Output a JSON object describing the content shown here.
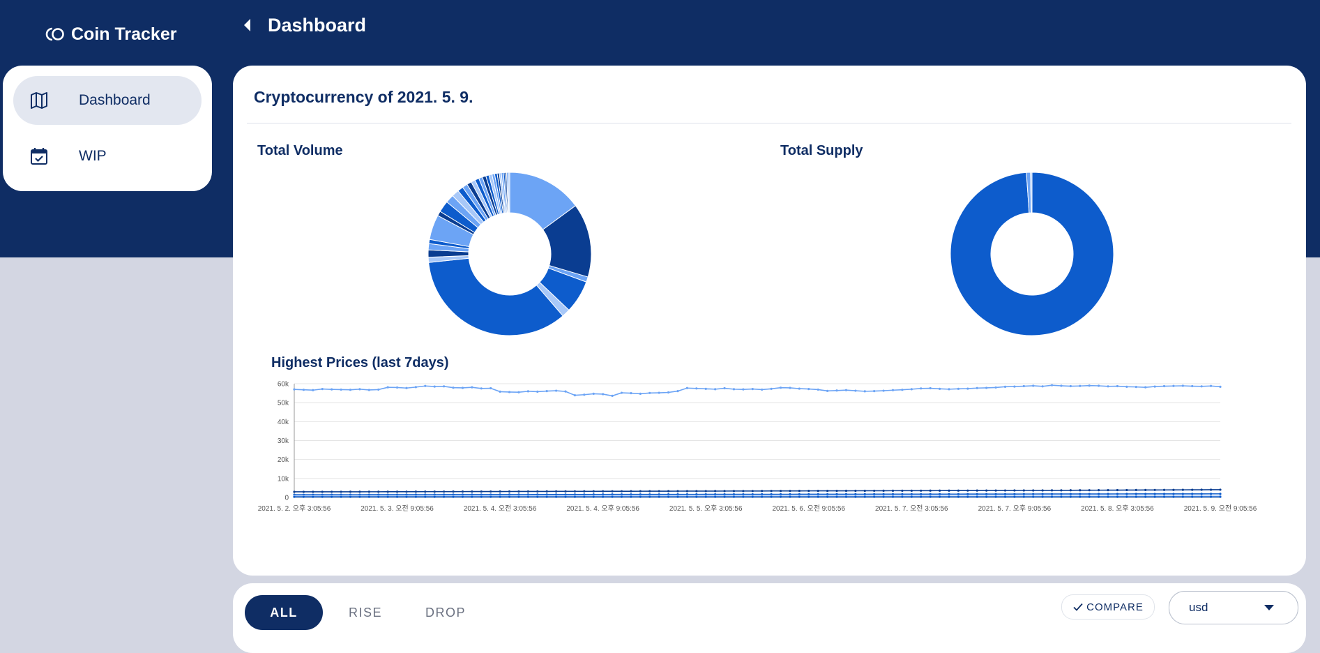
{
  "app": {
    "name": "Coin Tracker"
  },
  "header": {
    "title": "Dashboard"
  },
  "sidebar": {
    "items": [
      {
        "label": "Dashboard",
        "icon": "map-icon",
        "active": true
      },
      {
        "label": "WIP",
        "icon": "calendar-check-icon",
        "active": false
      }
    ]
  },
  "main": {
    "title": "Cryptocurrency of 2021. 5. 9.",
    "total_volume_label": "Total Volume",
    "total_supply_label": "Total Supply",
    "highest_prices_label": "Highest Prices (last 7days)"
  },
  "filters": {
    "tabs": [
      "ALL",
      "RISE",
      "DROP"
    ],
    "active": "ALL",
    "compare_label": "COMPARE",
    "currency_value": "usd"
  },
  "colors": {
    "navy": "#0f2d64",
    "blue": "#0d5ccc",
    "light_blue": "#6ca4f5",
    "dark_blue": "#0a3d91"
  },
  "chart_data": [
    {
      "type": "pie",
      "variant": "donut",
      "title": "Total Volume",
      "slices": [
        {
          "value": 14.5,
          "color": "#6ca4f5"
        },
        {
          "value": 14.2,
          "color": "#0a3d91"
        },
        {
          "value": 1.0,
          "color": "#6ca4f5"
        },
        {
          "value": 6.3,
          "color": "#0d5ccc"
        },
        {
          "value": 1.6,
          "color": "#a8c8f8"
        },
        {
          "value": 33.6,
          "color": "#0d5ccc"
        },
        {
          "value": 1.0,
          "color": "#a8c8f8"
        },
        {
          "value": 1.4,
          "color": "#0a3d91"
        },
        {
          "value": 1.2,
          "color": "#6ca4f5"
        },
        {
          "value": 0.8,
          "color": "#0d5ccc"
        },
        {
          "value": 4.8,
          "color": "#6ca4f5"
        },
        {
          "value": 0.9,
          "color": "#0a3d91"
        },
        {
          "value": 2.2,
          "color": "#0d5ccc"
        },
        {
          "value": 1.6,
          "color": "#6ca4f5"
        },
        {
          "value": 1.4,
          "color": "#a8c8f8"
        },
        {
          "value": 1.1,
          "color": "#0d5ccc"
        },
        {
          "value": 1.0,
          "color": "#6ca4f5"
        },
        {
          "value": 0.9,
          "color": "#0a3d91"
        },
        {
          "value": 0.8,
          "color": "#a8c8f8"
        },
        {
          "value": 0.8,
          "color": "#0d5ccc"
        },
        {
          "value": 0.7,
          "color": "#6ca4f5"
        },
        {
          "value": 0.7,
          "color": "#0a3d91"
        },
        {
          "value": 0.6,
          "color": "#0d5ccc"
        },
        {
          "value": 0.6,
          "color": "#a8c8f8"
        },
        {
          "value": 0.5,
          "color": "#6ca4f5"
        },
        {
          "value": 0.5,
          "color": "#0d5ccc"
        },
        {
          "value": 0.4,
          "color": "#0a3d91"
        },
        {
          "value": 0.4,
          "color": "#a8c8f8"
        },
        {
          "value": 0.4,
          "color": "#6ca4f5"
        },
        {
          "value": 0.3,
          "color": "#0d5ccc"
        },
        {
          "value": 0.3,
          "color": "#0a3d91"
        },
        {
          "value": 0.3,
          "color": "#6ca4f5"
        },
        {
          "value": 0.3,
          "color": "#a8c8f8"
        }
      ]
    },
    {
      "type": "pie",
      "variant": "donut",
      "title": "Total Supply",
      "slices": [
        {
          "value": 98.9,
          "color": "#0d5ccc"
        },
        {
          "value": 0.8,
          "color": "#6ca4f5"
        },
        {
          "value": 0.3,
          "color": "#a8c8f8"
        }
      ]
    },
    {
      "type": "line",
      "title": "Highest Prices (last 7days)",
      "ylim": [
        0,
        60000
      ],
      "yticks": [
        "0",
        "10k",
        "20k",
        "30k",
        "40k",
        "50k",
        "60k"
      ],
      "xticks": [
        "2021. 5. 2. 오후 3:05:56",
        "2021. 5. 3. 오전 9:05:56",
        "2021. 5. 4. 오전 3:05:56",
        "2021. 5. 4. 오후 9:05:56",
        "2021. 5. 5. 오후 3:05:56",
        "2021. 5. 6. 오전 9:05:56",
        "2021. 5. 7. 오전 3:05:56",
        "2021. 5. 7. 오후 9:05:56",
        "2021. 5. 8. 오후 3:05:56",
        "2021. 5. 9. 오전 9:05:56"
      ],
      "series": [
        {
          "color": "#6ca4f5",
          "values": [
            57000,
            56800,
            56600,
            57200,
            57000,
            56900,
            56800,
            57100,
            56700,
            56900,
            58100,
            58000,
            57700,
            58200,
            58800,
            58500,
            58600,
            57900,
            57800,
            58100,
            57500,
            57600,
            55800,
            55600,
            55500,
            56000,
            55800,
            56100,
            56300,
            55900,
            53900,
            54200,
            54700,
            54500,
            53600,
            55200,
            55000,
            54700,
            55100,
            55200,
            55400,
            56100,
            57700,
            57500,
            57300,
            57100,
            57600,
            57100,
            57000,
            57200,
            56900,
            57300,
            57900,
            57800,
            57400,
            57200,
            56900,
            56200,
            56400,
            56600,
            56300,
            56000,
            56100,
            56300,
            56600,
            56800,
            57100,
            57500,
            57600,
            57300,
            57100,
            57300,
            57400,
            57700,
            57800,
            58000,
            58400,
            58500,
            58700,
            58900,
            58600,
            59200,
            58900,
            58700,
            58800,
            59000,
            58900,
            58600,
            58700,
            58400,
            58300,
            58100,
            58500,
            58700,
            58800,
            58900,
            58700,
            58600,
            58800,
            58400
          ]
        },
        {
          "color": "#0a3d91",
          "values": [
            2950,
            2950,
            2960,
            2960,
            2970,
            2970,
            2980,
            2980,
            2990,
            2990,
            3000,
            3010,
            3020,
            3030,
            3040,
            3050,
            3060,
            3070,
            3080,
            3090,
            3100,
            3110,
            3120,
            3130,
            3140,
            3150,
            3160,
            3170,
            3180,
            3190,
            3200,
            3210,
            3220,
            3230,
            3240,
            3250,
            3260,
            3270,
            3280,
            3290,
            3300,
            3310,
            3320,
            3330,
            3340,
            3350,
            3360,
            3370,
            3380,
            3390,
            3400,
            3410,
            3420,
            3430,
            3440,
            3450,
            3460,
            3470,
            3480,
            3490,
            3500,
            3510,
            3520,
            3530,
            3540,
            3550,
            3560,
            3570,
            3580,
            3590,
            3600,
            3610,
            3620,
            3630,
            3640,
            3650,
            3660,
            3670,
            3680,
            3690,
            3700,
            3720,
            3740,
            3760,
            3780,
            3800,
            3820,
            3840,
            3860,
            3880,
            3900,
            3920,
            3940,
            3960,
            3980,
            4000,
            4020,
            4040,
            4060,
            4080
          ]
        },
        {
          "color": "#0d5ccc",
          "values": [
            1400,
            1400,
            1410,
            1410,
            1420,
            1420,
            1430,
            1430,
            1440,
            1440,
            1450,
            1450,
            1460,
            1460,
            1470,
            1470,
            1480,
            1480,
            1490,
            1490,
            1500,
            1500,
            1510,
            1510,
            1520,
            1520,
            1530,
            1530,
            1540,
            1540,
            1550,
            1550,
            1560,
            1560,
            1570,
            1570,
            1580,
            1580,
            1590,
            1590,
            1600,
            1600,
            1610,
            1610,
            1620,
            1620,
            1630,
            1630,
            1640,
            1640,
            1650,
            1650,
            1660,
            1660,
            1670,
            1670,
            1680,
            1680,
            1690,
            1690,
            1700,
            1700,
            1710,
            1710,
            1720,
            1720,
            1730,
            1730,
            1740,
            1740,
            1750,
            1750,
            1760,
            1760,
            1770,
            1770,
            1780,
            1780,
            1790,
            1790,
            1800,
            1800,
            1810,
            1810,
            1820,
            1820,
            1830,
            1830,
            1840,
            1840,
            1850,
            1850,
            1860,
            1860,
            1870,
            1870,
            1880,
            1880,
            1890,
            1890
          ]
        },
        {
          "color": "#a8c8f8",
          "values": [
            700,
            700,
            700,
            700,
            700,
            700,
            700,
            700,
            700,
            700,
            700,
            700,
            700,
            700,
            700,
            700,
            700,
            700,
            700,
            700,
            700,
            700,
            700,
            700,
            700,
            700,
            700,
            700,
            700,
            700,
            700,
            700,
            700,
            700,
            700,
            700,
            700,
            700,
            700,
            700,
            700,
            700,
            700,
            700,
            700,
            700,
            700,
            700,
            700,
            700,
            700,
            700,
            700,
            700,
            700,
            700,
            700,
            700,
            700,
            700,
            700,
            700,
            700,
            700,
            700,
            700,
            700,
            700,
            700,
            700,
            700,
            700,
            700,
            700,
            700,
            700,
            700,
            700,
            700,
            700,
            700,
            700,
            700,
            700,
            700,
            700,
            700,
            700,
            700,
            700,
            700,
            700,
            700,
            700,
            700,
            700,
            700,
            700,
            700,
            700
          ]
        },
        {
          "color": "#0d5ccc",
          "values": [
            300,
            300,
            300,
            300,
            300,
            300,
            300,
            300,
            300,
            300,
            300,
            300,
            300,
            300,
            300,
            300,
            300,
            300,
            300,
            300,
            300,
            300,
            300,
            300,
            300,
            300,
            300,
            300,
            300,
            300,
            300,
            300,
            300,
            300,
            300,
            300,
            300,
            300,
            300,
            300,
            300,
            300,
            300,
            300,
            300,
            300,
            300,
            300,
            300,
            300,
            300,
            300,
            300,
            300,
            300,
            300,
            300,
            300,
            300,
            300,
            300,
            300,
            300,
            300,
            300,
            300,
            300,
            300,
            300,
            300,
            300,
            300,
            300,
            300,
            300,
            300,
            300,
            300,
            300,
            300,
            300,
            300,
            300,
            300,
            300,
            300,
            300,
            300,
            300,
            300,
            300,
            300,
            300,
            300,
            300,
            300,
            300,
            300,
            300,
            300
          ]
        }
      ]
    }
  ]
}
